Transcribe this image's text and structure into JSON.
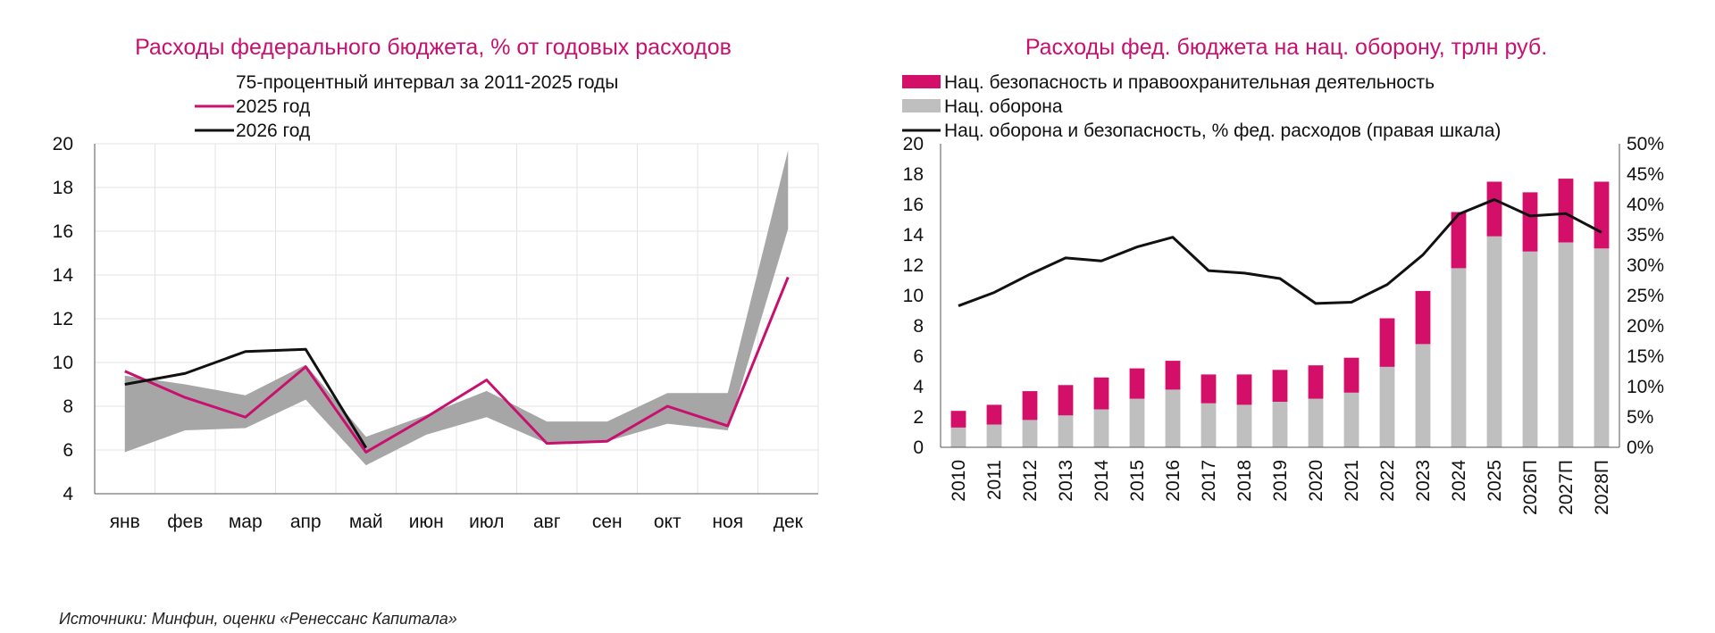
{
  "source": "Источники: Минфин, оценки «Ренессанс Капитала»",
  "chart_data": [
    {
      "type": "line",
      "title": "Расходы федерального бюджета, % от годовых расходов",
      "categories": [
        "янв",
        "фев",
        "мар",
        "апр",
        "май",
        "июн",
        "июл",
        "авг",
        "сен",
        "окт",
        "ноя",
        "дек"
      ],
      "ylim": [
        4,
        20
      ],
      "yticks": [
        4,
        6,
        8,
        10,
        12,
        14,
        16,
        18,
        20
      ],
      "grid": true,
      "legend_position": "top",
      "band": {
        "name": "75-процентный интервал за 2011-2025 годы",
        "color": "#A6A6A6",
        "lower": [
          5.9,
          6.9,
          7.0,
          8.3,
          5.3,
          6.7,
          7.5,
          6.3,
          6.4,
          7.2,
          6.9,
          16.1
        ],
        "upper": [
          9.4,
          9.0,
          8.5,
          9.9,
          6.6,
          7.6,
          8.7,
          7.3,
          7.3,
          8.6,
          8.6,
          19.7
        ]
      },
      "series": [
        {
          "name": "2025 год",
          "color": "#C8106E",
          "values": [
            9.6,
            8.4,
            7.5,
            9.8,
            5.9,
            7.5,
            9.2,
            6.3,
            6.4,
            8.0,
            7.1,
            13.9
          ]
        },
        {
          "name": "2026 год",
          "color": "#111111",
          "values": [
            9.0,
            9.5,
            10.5,
            10.6,
            6.1,
            null,
            null,
            null,
            null,
            null,
            null,
            null
          ]
        }
      ]
    },
    {
      "type": "bar",
      "title": "Расходы фед. бюджета на нац. оборону, трлн руб.",
      "categories": [
        "2010",
        "2011",
        "2012",
        "2013",
        "2014",
        "2015",
        "2016",
        "2017",
        "2018",
        "2019",
        "2020",
        "2021",
        "2022",
        "2023",
        "2024",
        "2025",
        "2026П",
        "2027П",
        "2028П"
      ],
      "stacked": true,
      "ylim": [
        0,
        20
      ],
      "yticks": [
        0,
        2,
        4,
        6,
        8,
        10,
        12,
        14,
        16,
        18,
        20
      ],
      "y2lim": [
        0,
        50
      ],
      "y2ticks": [
        "0%",
        "5%",
        "10%",
        "15%",
        "20%",
        "25%",
        "30%",
        "35%",
        "40%",
        "45%",
        "50%"
      ],
      "legend_position": "top",
      "series": [
        {
          "name": "Нац. оборона",
          "color": "#BFBFBF",
          "values": [
            1.3,
            1.5,
            1.8,
            2.1,
            2.5,
            3.2,
            3.8,
            2.9,
            2.8,
            3.0,
            3.2,
            3.6,
            5.3,
            6.8,
            11.8,
            13.9,
            12.9,
            13.5,
            13.1
          ]
        },
        {
          "name": "Нац. безопасность и правоохранительная деятельность",
          "color": "#D40F6A",
          "values": [
            1.1,
            1.3,
            1.9,
            2.0,
            2.1,
            2.0,
            1.9,
            1.9,
            2.0,
            2.1,
            2.2,
            2.3,
            3.2,
            3.5,
            3.7,
            3.6,
            3.9,
            4.2,
            4.4
          ]
        }
      ],
      "line": {
        "name": "Нац. оборона и безопасность, % фед. расходов (правая шкала)",
        "color": "#111111",
        "values": [
          23.3,
          25.5,
          28.5,
          31.2,
          30.7,
          33.0,
          34.6,
          29.1,
          28.7,
          27.8,
          23.7,
          23.9,
          26.8,
          31.7,
          38.4,
          40.8,
          38.1,
          38.5,
          35.4
        ]
      }
    }
  ]
}
